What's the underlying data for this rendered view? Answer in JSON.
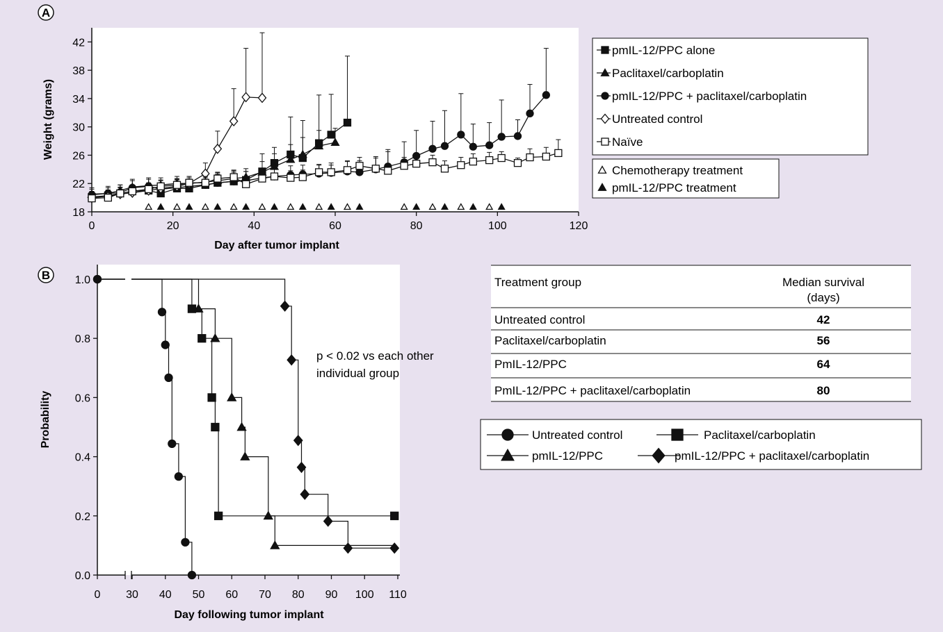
{
  "panel_a": {
    "label": "A",
    "xlabel": "Day after tumor implant",
    "ylabel": "Weight (grams)",
    "legend": [
      {
        "label": "pmIL-12/PPC alone",
        "marker": "square-filled"
      },
      {
        "label": "Paclitaxel/carboplatin",
        "marker": "triangle-filled"
      },
      {
        "label": "pmIL-12/PPC + paclitaxel/carboplatin",
        "marker": "circle-filled"
      },
      {
        "label": "Untreated control",
        "marker": "diamond-open"
      },
      {
        "label": "Naïve",
        "marker": "square-open"
      }
    ],
    "treatment_legend": [
      {
        "label": "Chemotherapy treatment",
        "marker": "triangle-open"
      },
      {
        "label": "pmIL-12/PPC treatment",
        "marker": "triangle-filled"
      }
    ]
  },
  "panel_b": {
    "label": "B",
    "xlabel": "Day following tumor implant",
    "ylabel": "Probability",
    "annotation": [
      "p < 0.02 vs each other",
      "individual group"
    ],
    "legend": [
      {
        "label": "Untreated control",
        "marker": "circle"
      },
      {
        "label": "Paclitaxel/carboplatin",
        "marker": "square"
      },
      {
        "label": "pmIL-12/PPC",
        "marker": "triangle"
      },
      {
        "label": "pmIL-12/PPC + paclitaxel/carboplatin",
        "marker": "diamond"
      }
    ]
  },
  "survival_table": {
    "headers": [
      "Treatment group",
      "Median survival",
      "(days)"
    ],
    "rows": [
      {
        "group": "Untreated control",
        "median": "42"
      },
      {
        "group": "Paclitaxel/carboplatin",
        "median": "56"
      },
      {
        "group": "PmIL-12/PPC",
        "median": "64"
      },
      {
        "group": "PmIL-12/PPC + paclitaxel/carboplatin",
        "median": "80"
      }
    ]
  },
  "chart_data": [
    {
      "type": "line",
      "panel": "A",
      "xlabel": "Day after tumor implant",
      "ylabel": "Weight (grams)",
      "xlim": [
        0,
        120
      ],
      "ylim": [
        18,
        44
      ],
      "xticks": [
        0,
        20,
        40,
        60,
        80,
        100,
        120
      ],
      "yticks": [
        18,
        22,
        26,
        30,
        34,
        38,
        42
      ],
      "grid": false,
      "series": [
        {
          "name": "pmIL-12/PPC alone",
          "marker": "square-filled",
          "x": [
            0,
            4,
            7,
            10,
            14,
            17,
            21,
            24,
            28,
            31,
            35,
            38,
            42,
            45,
            49,
            52,
            56,
            59,
            63
          ],
          "y": [
            20.1,
            20.3,
            20.6,
            20.9,
            21.0,
            20.6,
            21.3,
            21.3,
            21.8,
            22.1,
            22.3,
            22.5,
            23.7,
            24.9,
            26.1,
            25.6,
            27.7,
            28.9,
            30.6
          ],
          "err": [
            0.8,
            0.8,
            0.9,
            0.9,
            1.0,
            1.0,
            1.0,
            1.1,
            1.0,
            1.0,
            1.1,
            1.2,
            2.5,
            2.2,
            5.3,
            5.3,
            6.8,
            5.7,
            9.4
          ]
        },
        {
          "name": "Paclitaxel/carboplatin",
          "marker": "triangle-filled",
          "x": [
            0,
            4,
            7,
            10,
            14,
            17,
            21,
            24,
            28,
            31,
            35,
            38,
            42,
            45,
            49,
            52,
            56,
            60
          ],
          "y": [
            20.5,
            20.6,
            21.0,
            21.5,
            21.7,
            21.8,
            22.0,
            22.0,
            22.2,
            22.4,
            22.7,
            22.9,
            23.6,
            24.4,
            25.4,
            26.1,
            27.3,
            27.8
          ],
          "err": [
            0.7,
            0.8,
            0.8,
            0.9,
            0.9,
            1.0,
            1.0,
            1.0,
            1.0,
            1.1,
            1.1,
            1.2,
            1.5,
            1.8,
            2.1,
            2.4,
            2.2,
            2.0
          ]
        },
        {
          "name": "pmIL-12/PPC + paclitaxel/carboplatin",
          "marker": "circle-filled",
          "x": [
            0,
            4,
            7,
            10,
            14,
            17,
            21,
            24,
            28,
            31,
            35,
            38,
            42,
            45,
            49,
            52,
            56,
            59,
            63,
            66,
            70,
            73,
            77,
            80,
            84,
            87,
            91,
            94,
            98,
            101,
            105,
            108,
            112
          ],
          "y": [
            20.4,
            20.6,
            20.7,
            21.4,
            21.6,
            21.2,
            21.4,
            21.6,
            21.8,
            22.1,
            22.3,
            22.4,
            22.8,
            23.0,
            23.2,
            23.3,
            23.4,
            23.5,
            23.7,
            23.6,
            24.0,
            24.4,
            25.0,
            25.9,
            26.9,
            27.3,
            28.9,
            27.2,
            27.4,
            28.6,
            28.7,
            31.9,
            34.5
          ],
          "err": [
            1.0,
            1.0,
            1.1,
            1.2,
            1.2,
            1.2,
            1.2,
            1.2,
            1.2,
            1.2,
            1.3,
            1.3,
            1.3,
            1.3,
            1.3,
            1.3,
            1.3,
            1.4,
            1.5,
            1.6,
            1.8,
            2.4,
            2.9,
            3.6,
            3.9,
            5.0,
            5.8,
            3.2,
            3.2,
            5.2,
            2.3,
            4.1,
            6.6
          ]
        },
        {
          "name": "Untreated control",
          "marker": "diamond-open",
          "x": [
            0,
            4,
            7,
            10,
            14,
            17,
            21,
            24,
            28,
            31,
            35,
            38,
            42
          ],
          "y": [
            20.0,
            20.2,
            20.5,
            20.7,
            21.0,
            21.3,
            21.6,
            22.0,
            23.4,
            26.9,
            30.8,
            34.2,
            34.1
          ],
          "err": [
            0.6,
            0.6,
            0.7,
            0.7,
            0.8,
            0.8,
            0.9,
            1.0,
            1.5,
            2.5,
            4.6,
            6.9,
            9.2
          ]
        },
        {
          "name": "Naïve",
          "marker": "square-open",
          "x": [
            0,
            4,
            7,
            10,
            14,
            17,
            21,
            24,
            28,
            31,
            35,
            38,
            42,
            45,
            49,
            52,
            56,
            59,
            63,
            66,
            70,
            73,
            77,
            80,
            84,
            87,
            91,
            94,
            98,
            101,
            105,
            108,
            112,
            115
          ],
          "y": [
            19.9,
            20.0,
            20.6,
            20.9,
            21.2,
            21.6,
            21.8,
            22.1,
            22.1,
            22.7,
            22.9,
            21.9,
            22.7,
            23.0,
            22.8,
            22.9,
            23.6,
            23.6,
            23.9,
            24.5,
            24.1,
            23.8,
            24.5,
            24.8,
            25.0,
            24.1,
            24.6,
            25.1,
            25.3,
            25.6,
            24.9,
            25.7,
            25.8,
            26.3
          ],
          "err": [
            0.7,
            0.8,
            0.8,
            0.8,
            0.9,
            0.9,
            0.9,
            0.9,
            0.9,
            0.9,
            1.0,
            1.0,
            1.0,
            1.0,
            1.0,
            1.0,
            1.0,
            1.0,
            1.2,
            1.2,
            1.5,
            2.7,
            1.2,
            1.1,
            1.0,
            1.1,
            1.1,
            1.1,
            1.1,
            0.9,
            0.7,
            1.2,
            1.3,
            1.9
          ]
        }
      ],
      "treatment_markers": {
        "chemotherapy": [
          14,
          21,
          28,
          35,
          42,
          49,
          56,
          63,
          77,
          84,
          91,
          98
        ],
        "pmIL12": [
          17,
          24,
          31,
          38,
          45,
          52,
          59,
          66,
          80,
          87,
          94,
          101
        ]
      }
    },
    {
      "type": "line",
      "panel": "B",
      "xlabel": "Day following tumor implant",
      "ylabel": "Probability",
      "xlim": [
        0,
        110
      ],
      "ylim": [
        0,
        1
      ],
      "xticks": [
        0,
        30,
        40,
        50,
        60,
        70,
        80,
        90,
        100,
        110
      ],
      "yticks": [
        0.0,
        0.2,
        0.4,
        0.6,
        0.8,
        1.0
      ],
      "axis_break": [
        0,
        30
      ],
      "grid": false,
      "series": [
        {
          "name": "Untreated control",
          "marker": "circle",
          "step": [
            [
              0,
              1.0
            ],
            [
              39,
              1.0
            ],
            [
              39,
              0.889
            ],
            [
              40,
              0.889
            ],
            [
              40,
              0.778
            ],
            [
              41,
              0.778
            ],
            [
              41,
              0.667
            ],
            [
              42,
              0.667
            ],
            [
              42,
              0.444
            ],
            [
              44,
              0.444
            ],
            [
              44,
              0.333
            ],
            [
              46,
              0.333
            ],
            [
              46,
              0.111
            ],
            [
              48,
              0.111
            ],
            [
              48,
              0.0
            ]
          ],
          "points": [
            [
              0,
              1.0
            ],
            [
              39,
              0.889
            ],
            [
              40,
              0.778
            ],
            [
              41,
              0.667
            ],
            [
              42,
              0.444
            ],
            [
              44,
              0.333
            ],
            [
              46,
              0.111
            ],
            [
              48,
              0.0
            ]
          ]
        },
        {
          "name": "Paclitaxel/carboplatin",
          "marker": "square",
          "step": [
            [
              0,
              1.0
            ],
            [
              48,
              1.0
            ],
            [
              48,
              0.9
            ],
            [
              51,
              0.9
            ],
            [
              51,
              0.8
            ],
            [
              54,
              0.8
            ],
            [
              54,
              0.6
            ],
            [
              55,
              0.6
            ],
            [
              55,
              0.5
            ],
            [
              56,
              0.5
            ],
            [
              56,
              0.2
            ],
            [
              109,
              0.2
            ]
          ],
          "points": [
            [
              48,
              0.9
            ],
            [
              51,
              0.8
            ],
            [
              54,
              0.6
            ],
            [
              55,
              0.5
            ],
            [
              56,
              0.2
            ],
            [
              109,
              0.2
            ]
          ]
        },
        {
          "name": "pmIL-12/PPC",
          "marker": "triangle",
          "step": [
            [
              0,
              1.0
            ],
            [
              50,
              1.0
            ],
            [
              50,
              0.9
            ],
            [
              55,
              0.9
            ],
            [
              55,
              0.8
            ],
            [
              60,
              0.8
            ],
            [
              60,
              0.6
            ],
            [
              63,
              0.6
            ],
            [
              63,
              0.5
            ],
            [
              64,
              0.5
            ],
            [
              64,
              0.4
            ],
            [
              71,
              0.4
            ],
            [
              71,
              0.2
            ],
            [
              73,
              0.2
            ],
            [
              73,
              0.1
            ],
            [
              109,
              0.1
            ]
          ],
          "points": [
            [
              50,
              0.9
            ],
            [
              55,
              0.8
            ],
            [
              60,
              0.6
            ],
            [
              63,
              0.5
            ],
            [
              64,
              0.4
            ],
            [
              71,
              0.2
            ],
            [
              73,
              0.1
            ]
          ]
        },
        {
          "name": "pmIL-12/PPC + paclitaxel/carboplatin",
          "marker": "diamond",
          "step": [
            [
              0,
              1.0
            ],
            [
              76,
              1.0
            ],
            [
              76,
              0.909
            ],
            [
              78,
              0.909
            ],
            [
              78,
              0.727
            ],
            [
              80,
              0.727
            ],
            [
              80,
              0.455
            ],
            [
              81,
              0.455
            ],
            [
              81,
              0.364
            ],
            [
              82,
              0.364
            ],
            [
              82,
              0.273
            ],
            [
              89,
              0.273
            ],
            [
              89,
              0.182
            ],
            [
              95,
              0.182
            ],
            [
              95,
              0.091
            ],
            [
              109,
              0.091
            ]
          ],
          "points": [
            [
              76,
              0.909
            ],
            [
              78,
              0.727
            ],
            [
              80,
              0.455
            ],
            [
              81,
              0.364
            ],
            [
              82,
              0.273
            ],
            [
              89,
              0.182
            ],
            [
              95,
              0.091
            ],
            [
              109,
              0.091
            ]
          ]
        }
      ]
    }
  ]
}
